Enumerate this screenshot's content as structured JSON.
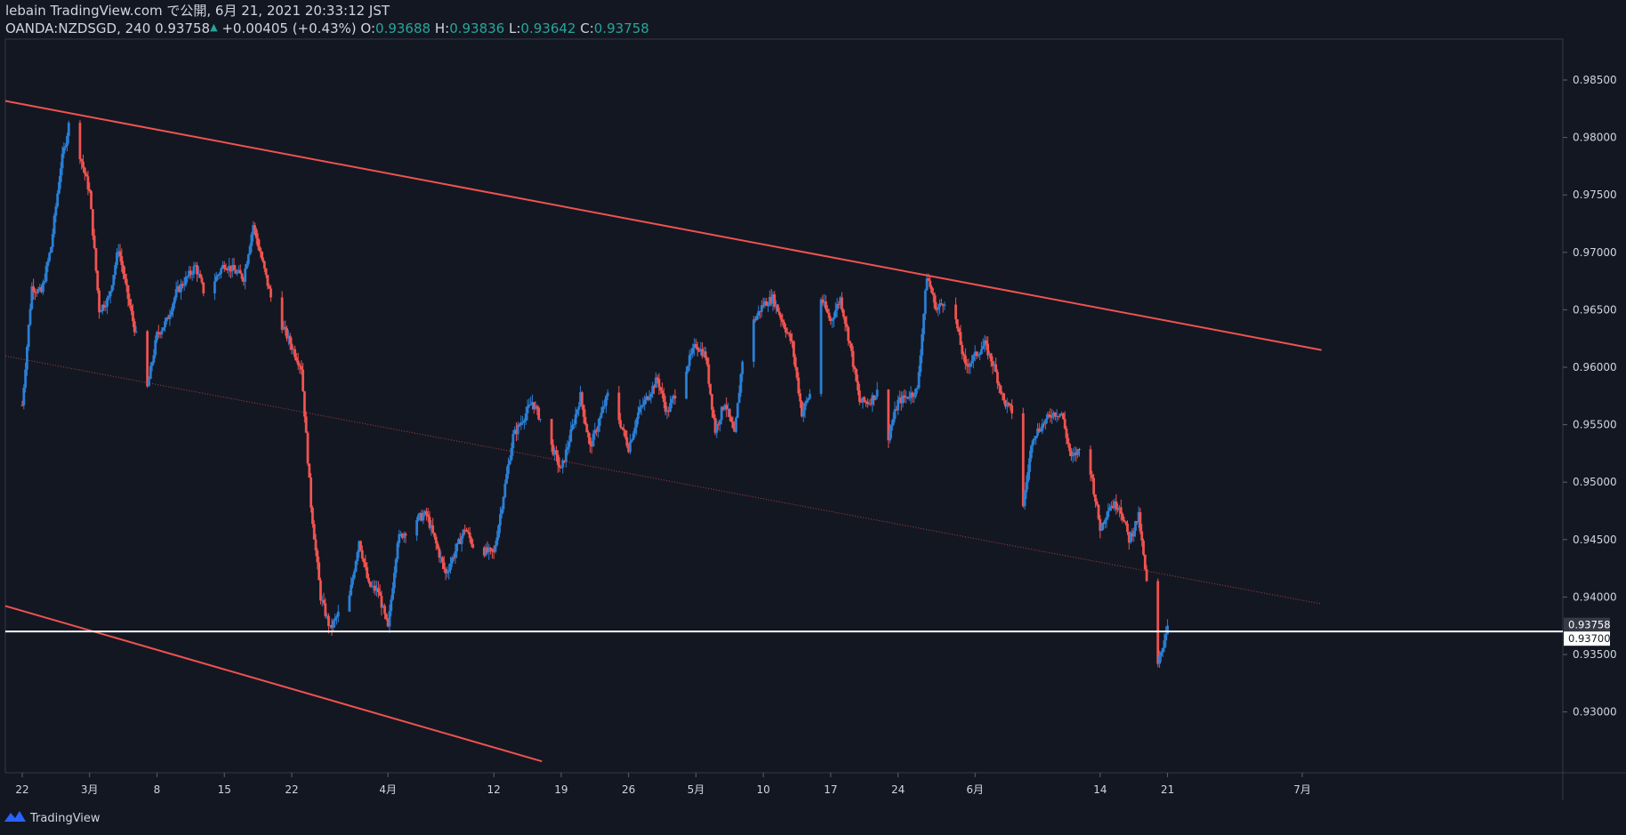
{
  "header": {
    "line1": "lebain TradingView.com で公開, 6月 21, 2021 20:33:12 JST",
    "symbol": "OANDA:NZDSGD, 240",
    "last_price": "0.93758",
    "change": "+0.00405 (+0.43%)",
    "o_label": "O:",
    "o_value": "0.93688",
    "h_label": "H:",
    "h_value": "0.93836",
    "l_label": "L:",
    "l_value": "0.93642",
    "c_label": "C:",
    "c_value": "0.93758"
  },
  "footer": {
    "brand": "TradingView",
    "logo_icon": "tradingview-logo-icon"
  },
  "colors": {
    "background": "#131722",
    "up": "#2a7fd4",
    "down": "#ef5350",
    "channel": "#ef5350",
    "hline": "#ffffff",
    "text": "#d1d4dc",
    "teal": "#26a69a"
  },
  "chart_data": {
    "type": "candlestick",
    "interval": "240",
    "y_ticks": [
      "0.98500",
      "0.98000",
      "0.97500",
      "0.97000",
      "0.96500",
      "0.96000",
      "0.95500",
      "0.95000",
      "0.94500",
      "0.94000",
      "0.93500",
      "0.93000"
    ],
    "x_ticks": [
      "22",
      "3月",
      "8",
      "15",
      "22",
      "4月",
      "12",
      "19",
      "26",
      "5月",
      "10",
      "17",
      "24",
      "6月",
      "14",
      "21",
      "7月"
    ],
    "price_labels": {
      "last": "0.93758",
      "level": "0.93700"
    },
    "ylim": [
      0.9255,
      0.9895
    ],
    "grid": false,
    "channel_lines": [
      {
        "name": "upper",
        "from": [
          "2021-02-22",
          0.9829
        ],
        "to": [
          "2021-07-07",
          0.9615
        ]
      },
      {
        "name": "middle",
        "style": "dotted",
        "from": [
          "2021-02-22",
          0.9607
        ],
        "to": [
          "2021-07-07",
          0.9394
        ]
      },
      {
        "name": "lower",
        "from": [
          "2021-02-22",
          0.9388
        ],
        "to": [
          "2021-04-17",
          0.9257
        ]
      }
    ],
    "horizontal_level": 0.937,
    "price_path": [
      [
        "2021-02-22",
        0.9567
      ],
      [
        "2021-02-23",
        0.967
      ],
      [
        "2021-02-24",
        0.9665
      ],
      [
        "2021-02-25",
        0.9705
      ],
      [
        "2021-02-26",
        0.9775
      ],
      [
        "2021-02-27",
        0.9818
      ],
      [
        "2021-03-01",
        0.9752
      ],
      [
        "2021-03-02",
        0.965
      ],
      [
        "2021-03-03",
        0.966
      ],
      [
        "2021-03-04",
        0.9704
      ],
      [
        "2021-03-05",
        0.966
      ],
      [
        "2021-03-07",
        0.9582
      ],
      [
        "2021-03-08",
        0.9628
      ],
      [
        "2021-03-09",
        0.964
      ],
      [
        "2021-03-10",
        0.9665
      ],
      [
        "2021-03-12",
        0.9688
      ],
      [
        "2021-03-13",
        0.9662
      ],
      [
        "2021-03-15",
        0.969
      ],
      [
        "2021-03-17",
        0.9678
      ],
      [
        "2021-03-18",
        0.9724
      ],
      [
        "2021-03-19",
        0.969
      ],
      [
        "2021-03-20",
        0.9655
      ],
      [
        "2021-03-22",
        0.9618
      ],
      [
        "2021-03-23",
        0.96
      ],
      [
        "2021-03-24",
        0.948
      ],
      [
        "2021-03-25",
        0.94
      ],
      [
        "2021-03-26",
        0.9372
      ],
      [
        "2021-03-27",
        0.9388
      ],
      [
        "2021-03-28",
        0.94
      ],
      [
        "2021-03-29",
        0.945
      ],
      [
        "2021-03-30",
        0.941
      ],
      [
        "2021-03-31",
        0.9405
      ],
      [
        "2021-04-01",
        0.9372
      ],
      [
        "2021-04-02",
        0.945
      ],
      [
        "2021-04-04",
        0.9468
      ],
      [
        "2021-04-05",
        0.9472
      ],
      [
        "2021-04-07",
        0.942
      ],
      [
        "2021-04-09",
        0.946
      ],
      [
        "2021-04-10",
        0.9442
      ],
      [
        "2021-04-11",
        0.944
      ],
      [
        "2021-04-12",
        0.9438
      ],
      [
        "2021-04-14",
        0.954
      ],
      [
        "2021-04-16",
        0.957
      ],
      [
        "2021-04-17",
        0.9552
      ],
      [
        "2021-04-19",
        0.951
      ],
      [
        "2021-04-21",
        0.9575
      ],
      [
        "2021-04-22",
        0.953
      ],
      [
        "2021-04-24",
        0.958
      ],
      [
        "2021-04-26",
        0.953
      ],
      [
        "2021-04-27",
        0.956
      ],
      [
        "2021-04-29",
        0.959
      ],
      [
        "2021-04-30",
        0.956
      ],
      [
        "2021-05-01",
        0.958
      ],
      [
        "2021-05-03",
        0.962
      ],
      [
        "2021-05-04",
        0.961
      ],
      [
        "2021-05-05",
        0.9545
      ],
      [
        "2021-05-06",
        0.957
      ],
      [
        "2021-05-07",
        0.954
      ],
      [
        "2021-05-08",
        0.962
      ],
      [
        "2021-05-09",
        0.964
      ],
      [
        "2021-05-10",
        0.9655
      ],
      [
        "2021-05-11",
        0.966
      ],
      [
        "2021-05-13",
        0.962
      ],
      [
        "2021-05-14",
        0.956
      ],
      [
        "2021-05-15",
        0.958
      ],
      [
        "2021-05-16",
        0.966
      ],
      [
        "2021-05-17",
        0.964
      ],
      [
        "2021-05-18",
        0.966
      ],
      [
        "2021-05-19",
        0.962
      ],
      [
        "2021-05-20",
        0.957
      ],
      [
        "2021-05-21",
        0.957
      ],
      [
        "2021-05-22",
        0.958
      ],
      [
        "2021-05-23",
        0.954
      ],
      [
        "2021-05-24",
        0.957
      ],
      [
        "2021-05-26",
        0.958
      ],
      [
        "2021-05-27",
        0.968
      ],
      [
        "2021-05-28",
        0.965
      ],
      [
        "2021-05-29",
        0.966
      ],
      [
        "2021-05-30",
        0.964
      ],
      [
        "2021-05-31",
        0.96
      ],
      [
        "2021-06-01",
        0.961
      ],
      [
        "2021-06-02",
        0.962
      ],
      [
        "2021-06-03",
        0.96
      ],
      [
        "2021-06-04",
        0.957
      ],
      [
        "2021-06-05",
        0.956
      ],
      [
        "2021-06-06",
        0.948
      ],
      [
        "2021-06-07",
        0.954
      ],
      [
        "2021-06-09",
        0.956
      ],
      [
        "2021-06-10",
        0.956
      ],
      [
        "2021-06-11",
        0.952
      ],
      [
        "2021-06-12",
        0.953
      ],
      [
        "2021-06-13",
        0.951
      ],
      [
        "2021-06-14",
        0.946
      ],
      [
        "2021-06-15",
        0.948
      ],
      [
        "2021-06-16",
        0.948
      ],
      [
        "2021-06-17",
        0.945
      ],
      [
        "2021-06-18",
        0.947
      ],
      [
        "2021-06-19",
        0.94
      ],
      [
        "2021-06-20",
        0.934
      ],
      [
        "2021-06-21",
        0.9376
      ]
    ]
  }
}
